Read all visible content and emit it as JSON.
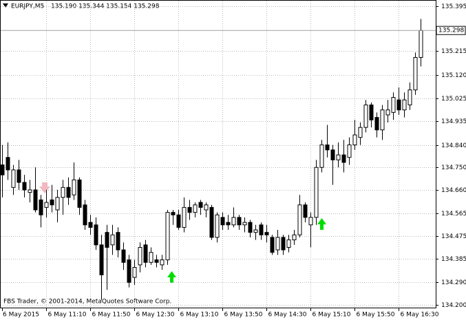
{
  "chart_data": {
    "type": "candlestick",
    "symbol": "EURJPY,M5",
    "quote": "135.190 135.344 135.154 135.298",
    "footer": "FBS Trader, © 2001-2014, MetaQuotes Software Corp.",
    "last_price": {
      "value": 135.298,
      "label": "135.298"
    },
    "categories": [
      "6 May 2015",
      null,
      null,
      null,
      null,
      null,
      null,
      null,
      "6 May 11:10",
      null,
      null,
      null,
      null,
      null,
      null,
      null,
      "6 May 11:50",
      null,
      null,
      null,
      null,
      null,
      null,
      null,
      "6 May 12:30",
      null,
      null,
      null,
      null,
      null,
      null,
      null,
      "6 May 13:10",
      null,
      null,
      null,
      null,
      null,
      null,
      null,
      "6 May 13:50",
      null,
      null,
      null,
      null,
      null,
      null,
      null,
      "6 May 14:30",
      null,
      null,
      null,
      null,
      null,
      null,
      null,
      "6 May 15:10",
      null,
      null,
      null,
      null,
      null,
      null,
      null,
      "6 May 15:50",
      null,
      null,
      null,
      null,
      null,
      null,
      null,
      "6 May 16:30",
      null,
      null,
      null,
      null
    ],
    "open": [
      134.76,
      134.79,
      134.67,
      134.74,
      134.69,
      134.65,
      134.66,
      134.62,
      134.59,
      134.62,
      134.58,
      134.63,
      134.67,
      134.64,
      134.7,
      134.6,
      134.53,
      134.52,
      134.44,
      134.49,
      134.44,
      134.49,
      134.42,
      134.38,
      134.31,
      134.36,
      134.44,
      134.37,
      134.38,
      134.36,
      134.38,
      134.57,
      134.56,
      134.51,
      134.59,
      134.57,
      134.61,
      134.58,
      134.59,
      134.47,
      134.55,
      134.53,
      134.52,
      134.55,
      134.52,
      134.53,
      134.49,
      134.52,
      134.49,
      134.47,
      134.42,
      134.47,
      134.43,
      134.46,
      134.48,
      134.6,
      134.52,
      134.55,
      134.75,
      134.84,
      134.82,
      134.78,
      134.8,
      134.79,
      134.84,
      134.87,
      134.91,
      135.0,
      134.95,
      134.9,
      134.96,
      134.97,
      135.02,
      134.98,
      135.0,
      135.06,
      135.19
    ],
    "high": [
      134.84,
      134.85,
      134.76,
      134.78,
      134.72,
      134.7,
      134.75,
      134.64,
      134.66,
      134.68,
      134.66,
      134.7,
      134.71,
      134.77,
      134.71,
      134.62,
      134.56,
      134.55,
      134.48,
      134.52,
      134.52,
      134.51,
      134.45,
      134.4,
      134.38,
      134.45,
      134.46,
      134.43,
      134.4,
      134.4,
      134.58,
      134.58,
      134.58,
      134.63,
      134.62,
      134.61,
      134.62,
      134.61,
      134.6,
      134.57,
      134.57,
      134.56,
      134.59,
      134.56,
      134.55,
      134.54,
      134.52,
      134.53,
      134.52,
      134.48,
      134.5,
      134.48,
      134.48,
      134.5,
      134.64,
      134.61,
      134.57,
      134.78,
      134.86,
      134.92,
      134.84,
      134.85,
      134.86,
      134.87,
      134.94,
      134.93,
      135.02,
      135.01,
      134.97,
      135.0,
      135.02,
      135.05,
      135.07,
      135.05,
      135.09,
      135.21,
      135.344
    ],
    "low": [
      134.63,
      134.7,
      134.64,
      134.66,
      134.63,
      134.61,
      134.57,
      134.51,
      134.55,
      134.57,
      134.53,
      134.56,
      134.6,
      134.62,
      134.56,
      134.5,
      134.48,
      134.42,
      134.22,
      134.26,
      134.4,
      134.39,
      134.34,
      134.27,
      134.28,
      134.33,
      134.35,
      134.36,
      134.35,
      134.34,
      134.36,
      134.52,
      134.5,
      134.49,
      134.54,
      134.55,
      134.56,
      134.55,
      134.46,
      134.45,
      134.5,
      134.5,
      134.51,
      134.5,
      134.49,
      134.47,
      134.46,
      134.46,
      134.45,
      134.4,
      134.4,
      134.4,
      134.41,
      134.44,
      134.47,
      134.53,
      134.43,
      134.52,
      134.73,
      134.79,
      134.68,
      134.75,
      134.73,
      134.76,
      134.82,
      134.84,
      134.89,
      134.91,
      134.87,
      134.86,
      134.93,
      134.94,
      134.96,
      134.95,
      134.98,
      135.04,
      135.154
    ],
    "close": [
      134.72,
      134.74,
      134.74,
      134.69,
      134.66,
      134.66,
      134.58,
      134.56,
      134.61,
      134.6,
      134.63,
      134.67,
      134.63,
      134.7,
      134.59,
      134.52,
      134.51,
      134.44,
      134.32,
      134.43,
      134.48,
      134.42,
      134.37,
      134.29,
      134.35,
      134.43,
      134.37,
      134.41,
      134.37,
      134.38,
      134.57,
      134.56,
      134.51,
      134.59,
      134.57,
      134.6,
      134.59,
      134.6,
      134.47,
      134.56,
      134.52,
      134.52,
      134.55,
      134.52,
      134.53,
      134.49,
      134.5,
      134.48,
      134.48,
      134.41,
      134.47,
      134.42,
      134.46,
      134.48,
      134.6,
      134.55,
      134.55,
      134.75,
      134.84,
      134.82,
      134.78,
      134.8,
      134.77,
      134.84,
      134.88,
      134.91,
      135.0,
      134.94,
      134.9,
      134.98,
      134.98,
      135.03,
      134.98,
      135.02,
      135.06,
      135.19,
      135.298
    ],
    "ylim": [
      134.2,
      135.395
    ],
    "yticks": [
      135.395,
      135.215,
      {
        "value": 135.12,
        "label": "135.120"
      },
      135.025,
      134.935,
      {
        "value": 134.84,
        "label": "134.840"
      },
      {
        "value": 134.75,
        "label": "134.750"
      },
      {
        "value": 134.66,
        "label": "134.660"
      },
      134.565,
      134.475,
      134.385,
      {
        "value": 134.29,
        "label": "134.290"
      },
      {
        "value": 134.2,
        "label": "134.200"
      }
    ],
    "grid": true,
    "bull_color": "#ffffff",
    "bear_color": "#000000"
  }
}
